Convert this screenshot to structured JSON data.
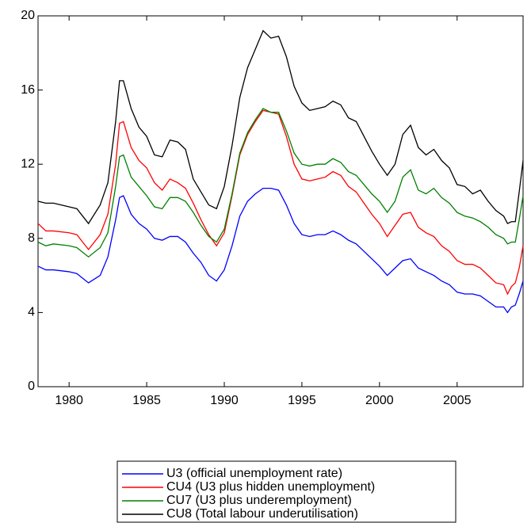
{
  "chart_data": {
    "type": "line",
    "x": [
      1978,
      1978.5,
      1979,
      1980,
      1980.5,
      1981.25,
      1982,
      1982.5,
      1983,
      1983.25,
      1983.5,
      1984,
      1984.5,
      1985,
      1985.5,
      1986,
      1986.5,
      1987,
      1987.5,
      1988,
      1988.5,
      1989,
      1989.5,
      1990,
      1990.5,
      1991,
      1991.5,
      1992,
      1992.5,
      1993,
      1993.5,
      1994,
      1994.5,
      1995,
      1995.5,
      1996,
      1996.5,
      1997,
      1997.5,
      1998,
      1998.5,
      1999,
      1999.5,
      2000,
      2000.5,
      2001,
      2001.5,
      2002,
      2002.5,
      2003,
      2003.5,
      2004,
      2004.5,
      2005,
      2005.5,
      2006,
      2006.5,
      2007,
      2007.5,
      2008,
      2008.25,
      2008.5,
      2008.75,
      2009,
      2009.25
    ],
    "series": [
      {
        "name": "U3 (official unemployment rate)",
        "color": "#0000ff",
        "values": [
          6.5,
          6.3,
          6.3,
          6.2,
          6.1,
          5.6,
          6.0,
          7.0,
          9.0,
          10.2,
          10.3,
          9.3,
          8.8,
          8.5,
          8.0,
          7.9,
          8.1,
          8.1,
          7.8,
          7.2,
          6.7,
          6.0,
          5.7,
          6.3,
          7.6,
          9.2,
          10.0,
          10.4,
          10.7,
          10.7,
          10.6,
          9.8,
          8.8,
          8.2,
          8.1,
          8.2,
          8.2,
          8.4,
          8.2,
          7.9,
          7.7,
          7.3,
          6.9,
          6.5,
          6.0,
          6.4,
          6.8,
          6.9,
          6.4,
          6.2,
          6.0,
          5.7,
          5.5,
          5.1,
          5.0,
          5.0,
          4.9,
          4.6,
          4.3,
          4.3,
          4.0,
          4.3,
          4.4,
          5.0,
          5.7
        ]
      },
      {
        "name": "CU4 (U3 plus hidden unemployment)",
        "color": "#ff0000",
        "values": [
          8.8,
          8.4,
          8.4,
          8.3,
          8.2,
          7.4,
          8.2,
          9.3,
          12.0,
          14.2,
          14.3,
          12.9,
          12.2,
          11.8,
          11.0,
          10.6,
          11.2,
          11.0,
          10.7,
          9.9,
          9.0,
          8.2,
          7.6,
          8.3,
          10.3,
          12.5,
          13.6,
          14.3,
          14.9,
          14.8,
          14.7,
          13.5,
          12.0,
          11.2,
          11.1,
          11.2,
          11.3,
          11.6,
          11.4,
          10.8,
          10.5,
          9.9,
          9.3,
          8.8,
          8.1,
          8.7,
          9.3,
          9.4,
          8.6,
          8.3,
          8.1,
          7.6,
          7.3,
          6.8,
          6.6,
          6.6,
          6.4,
          6.0,
          5.6,
          5.5,
          5.0,
          5.4,
          5.6,
          6.4,
          7.6
        ]
      },
      {
        "name": "CU7 (U3 plus underemployment)",
        "color": "#008000",
        "values": [
          7.8,
          7.6,
          7.7,
          7.6,
          7.5,
          7.0,
          7.5,
          8.3,
          10.8,
          12.4,
          12.5,
          11.3,
          10.8,
          10.3,
          9.7,
          9.6,
          10.2,
          10.2,
          10.0,
          9.4,
          8.7,
          8.1,
          7.8,
          8.5,
          10.4,
          12.6,
          13.7,
          14.4,
          15.0,
          14.8,
          14.8,
          13.8,
          12.6,
          12.0,
          11.9,
          12.0,
          12.0,
          12.3,
          12.1,
          11.6,
          11.4,
          10.9,
          10.4,
          10.0,
          9.4,
          10.0,
          11.3,
          11.7,
          10.6,
          10.4,
          10.7,
          10.2,
          9.9,
          9.4,
          9.2,
          9.1,
          8.9,
          8.6,
          8.2,
          8.0,
          7.7,
          7.8,
          7.8,
          9.0,
          10.3
        ]
      },
      {
        "name": "CU8 (Total labour underutilisation)",
        "color": "#000000",
        "values": [
          10.0,
          9.9,
          9.9,
          9.7,
          9.6,
          8.8,
          9.8,
          11.0,
          14.3,
          16.5,
          16.5,
          15.0,
          14.0,
          13.5,
          12.5,
          12.4,
          13.3,
          13.2,
          12.8,
          11.2,
          10.5,
          9.8,
          9.6,
          10.8,
          13.0,
          15.6,
          17.2,
          18.2,
          19.2,
          18.8,
          18.9,
          17.8,
          16.2,
          15.3,
          14.9,
          15.0,
          15.1,
          15.4,
          15.2,
          14.5,
          14.3,
          13.5,
          12.7,
          12.0,
          11.4,
          12.0,
          13.6,
          14.1,
          12.9,
          12.5,
          12.8,
          12.2,
          11.8,
          10.9,
          10.8,
          10.4,
          10.6,
          10.0,
          9.5,
          9.2,
          8.8,
          8.9,
          8.9,
          10.5,
          12.2
        ]
      }
    ],
    "xlim": [
      1978,
      2009.25
    ],
    "xticks": [
      1980,
      1985,
      1990,
      1995,
      2000,
      2005
    ],
    "ylim": [
      0,
      20
    ],
    "yticks": [
      0,
      4,
      8,
      12,
      16,
      20
    ],
    "grid": false,
    "legend": "bottom"
  }
}
